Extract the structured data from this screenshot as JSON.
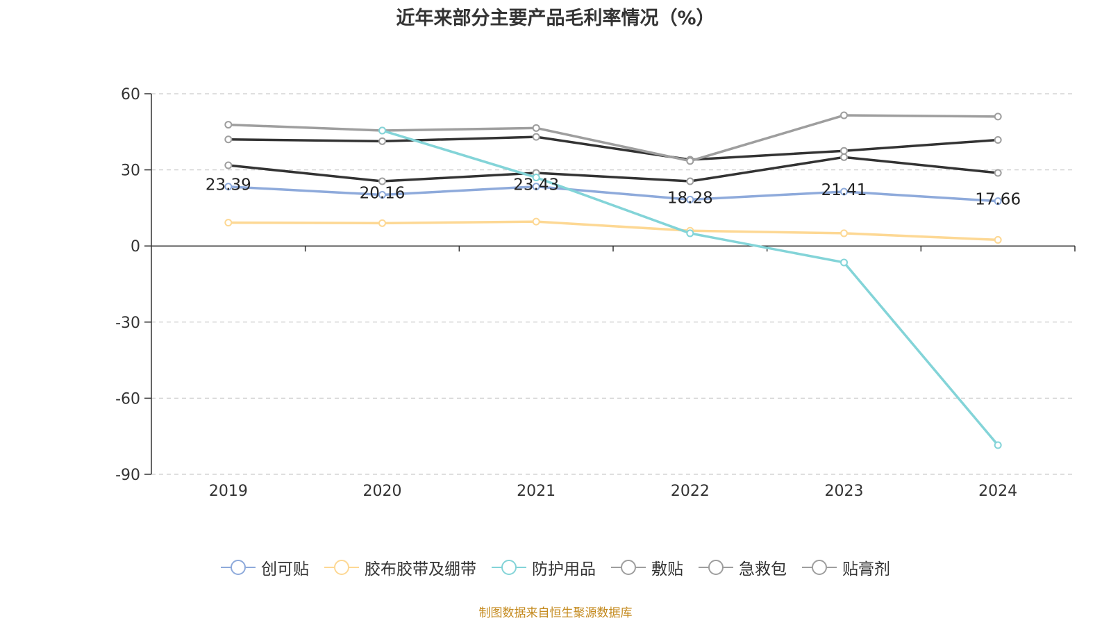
{
  "chart_data": {
    "type": "line",
    "title": "近年来部分主要产品毛利率情况（%）",
    "categories": [
      "2019",
      "2020",
      "2021",
      "2022",
      "2023",
      "2024"
    ],
    "y_ticks": [
      "60",
      "30",
      "0",
      "-30",
      "-60",
      "-90"
    ],
    "ylim": [
      -90,
      60
    ],
    "grid": true,
    "legend_position": "bottom",
    "series": [
      {
        "name": "创可贴",
        "color": "#8eaadb",
        "values": [
          23.39,
          20.16,
          23.43,
          18.28,
          21.41,
          17.66
        ],
        "data_labels": [
          "23.39",
          "20.16",
          "23.43",
          "18.28",
          "21.41",
          "17.66"
        ]
      },
      {
        "name": "胶布胶带及绷带",
        "color": "#fdd894",
        "values": [
          9.2,
          9.0,
          9.6,
          6.0,
          5.0,
          2.4
        ]
      },
      {
        "name": "防护用品",
        "color": "#83d4d8",
        "values": [
          null,
          45.5,
          27.0,
          5.0,
          -6.5,
          -78.5
        ]
      },
      {
        "name": "敷贴",
        "color": "#333333",
        "values": [
          42.0,
          41.3,
          43.0,
          34.0,
          37.5,
          41.8
        ]
      },
      {
        "name": "急救包",
        "color": "#333333",
        "values": [
          31.8,
          25.5,
          28.8,
          25.5,
          35.0,
          28.8
        ]
      },
      {
        "name": "贴膏剂",
        "color": "#9e9e9e",
        "values": [
          47.8,
          45.5,
          46.5,
          33.5,
          51.5,
          51.0
        ]
      }
    ]
  },
  "source": "制图数据来自恒生聚源数据库"
}
